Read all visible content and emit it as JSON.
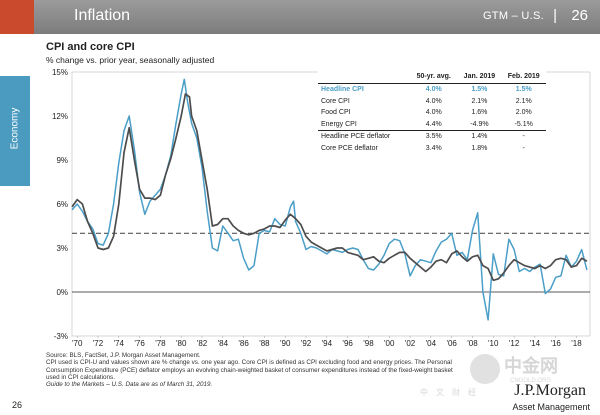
{
  "header": {
    "title": "Inflation",
    "gtm": "GTM – U.S.",
    "separator": "|",
    "page_number": "26"
  },
  "side_tab": {
    "label": "Economy"
  },
  "chart_title": "CPI and core CPI",
  "chart_subtitle": "% change vs. prior year, seasonally adjusted",
  "colors": {
    "headline": "#4a9ec7",
    "core": "#4d4d4d",
    "average_line": "#555555",
    "header_bg": "#8a8a8a",
    "accent": "#c94a2c",
    "side_tab": "#4b9bc0"
  },
  "chart_data": {
    "type": "line",
    "title": "CPI and core CPI",
    "subtitle": "% change vs. prior year, seasonally adjusted",
    "xlabel": "",
    "ylabel": "",
    "x_range": [
      1969.5,
      2019.3
    ],
    "ylim": [
      -3,
      15
    ],
    "yticks": [
      -3,
      0,
      3,
      6,
      9,
      12,
      15
    ],
    "ytick_labels": [
      "-3%",
      "0%",
      "3%",
      "6%",
      "9%",
      "12%",
      "15%"
    ],
    "xticks": [
      1970,
      1972,
      1974,
      1976,
      1978,
      1980,
      1982,
      1984,
      1986,
      1988,
      1990,
      1992,
      1994,
      1996,
      1998,
      2000,
      2002,
      2004,
      2006,
      2008,
      2010,
      2012,
      2014,
      2016,
      2018
    ],
    "xtick_labels": [
      "'70",
      "'72",
      "'74",
      "'76",
      "'78",
      "'80",
      "'82",
      "'84",
      "'86",
      "'88",
      "'90",
      "'92",
      "'94",
      "'96",
      "'98",
      "'00",
      "'02",
      "'04",
      "'06",
      "'08",
      "'10",
      "'12",
      "'14",
      "'16",
      "'18"
    ],
    "reference_line": {
      "name": "50-yr. avg.",
      "value": 4.0,
      "style": "dashed"
    },
    "series": [
      {
        "name": "Headline CPI",
        "x": [
          1969.5,
          1970,
          1970.5,
          1971,
          1971.5,
          1972,
          1972.5,
          1973,
          1973.5,
          1974,
          1974.5,
          1975,
          1975.5,
          1976,
          1976.5,
          1977,
          1977.5,
          1978,
          1978.5,
          1979,
          1979.5,
          1980,
          1980.3,
          1980.6,
          1981,
          1981.5,
          1982,
          1982.5,
          1983,
          1983.5,
          1984,
          1984.5,
          1985,
          1985.5,
          1986,
          1986.5,
          1987,
          1987.5,
          1988,
          1988.5,
          1989,
          1989.5,
          1990,
          1990.5,
          1990.8,
          1991,
          1991.5,
          1992,
          1992.5,
          1993,
          1993.5,
          1994,
          1994.5,
          1995,
          1995.5,
          1996,
          1996.5,
          1997,
          1997.5,
          1998,
          1998.5,
          1999,
          1999.5,
          2000,
          2000.5,
          2001,
          2001.5,
          2002,
          2002.5,
          2003,
          2003.5,
          2004,
          2004.5,
          2005,
          2005.5,
          2006,
          2006.5,
          2007,
          2007.5,
          2008,
          2008.5,
          2009,
          2009.5,
          2010,
          2010.5,
          2011,
          2011.5,
          2012,
          2012.5,
          2013,
          2013.5,
          2014,
          2014.5,
          2015,
          2015.5,
          2016,
          2016.5,
          2017,
          2017.5,
          2018,
          2018.5,
          2019
        ],
        "values": [
          5.6,
          6.0,
          5.5,
          4.8,
          4.3,
          3.3,
          3.2,
          4.0,
          6.0,
          8.8,
          11.0,
          12.0,
          9.7,
          6.8,
          5.3,
          6.2,
          6.6,
          7.0,
          8.0,
          9.3,
          11.5,
          13.5,
          14.5,
          13.0,
          11.5,
          10.5,
          8.5,
          5.5,
          3.0,
          2.8,
          4.5,
          4.0,
          3.5,
          3.6,
          2.3,
          1.5,
          1.8,
          4.0,
          4.2,
          4.1,
          5.0,
          4.6,
          4.5,
          5.8,
          6.2,
          4.8,
          4.0,
          2.9,
          3.1,
          3.0,
          2.8,
          2.6,
          2.9,
          2.8,
          2.7,
          2.9,
          3.0,
          2.9,
          2.2,
          1.6,
          1.5,
          1.9,
          2.5,
          3.3,
          3.6,
          3.5,
          2.6,
          1.1,
          1.8,
          2.2,
          2.1,
          2.0,
          2.8,
          3.4,
          3.6,
          4.0,
          2.5,
          2.7,
          2.2,
          4.2,
          5.4,
          0.0,
          -1.9,
          2.6,
          1.2,
          1.1,
          3.6,
          2.9,
          1.4,
          1.6,
          1.4,
          1.7,
          1.9,
          -0.1,
          0.2,
          1.0,
          1.1,
          2.5,
          1.7,
          2.1,
          2.9,
          1.5
        ]
      },
      {
        "name": "Core CPI",
        "x": [
          1969.5,
          1970,
          1970.5,
          1971,
          1971.5,
          1972,
          1972.5,
          1973,
          1973.5,
          1974,
          1974.5,
          1975,
          1975.5,
          1976,
          1976.5,
          1977,
          1977.5,
          1978,
          1978.5,
          1979,
          1979.5,
          1980,
          1980.4,
          1980.8,
          1981,
          1981.5,
          1982,
          1982.5,
          1983,
          1983.5,
          1984,
          1984.5,
          1985,
          1985.5,
          1986,
          1986.5,
          1987,
          1987.5,
          1988,
          1988.5,
          1989,
          1989.5,
          1990,
          1990.5,
          1991,
          1991.5,
          1992,
          1992.5,
          1993,
          1993.5,
          1994,
          1994.5,
          1995,
          1995.5,
          1996,
          1996.5,
          1997,
          1997.5,
          1998,
          1998.5,
          1999,
          1999.5,
          2000,
          2000.5,
          2001,
          2001.5,
          2002,
          2002.5,
          2003,
          2003.5,
          2004,
          2004.5,
          2005,
          2005.5,
          2006,
          2006.5,
          2007,
          2007.5,
          2008,
          2008.5,
          2009,
          2009.5,
          2010,
          2010.5,
          2011,
          2011.5,
          2012,
          2012.5,
          2013,
          2013.5,
          2014,
          2014.5,
          2015,
          2015.5,
          2016,
          2016.5,
          2017,
          2017.5,
          2018,
          2018.5,
          2019
        ],
        "values": [
          5.8,
          6.3,
          6.0,
          4.8,
          4.0,
          3.0,
          2.9,
          3.0,
          3.8,
          6.0,
          9.5,
          11.2,
          9.0,
          7.0,
          6.4,
          6.4,
          6.3,
          6.6,
          8.0,
          9.1,
          10.5,
          12.0,
          13.5,
          13.3,
          12.0,
          11.0,
          9.0,
          7.0,
          4.5,
          4.6,
          5.0,
          5.0,
          4.5,
          4.2,
          4.0,
          3.9,
          4.0,
          4.2,
          4.3,
          4.5,
          4.5,
          4.4,
          4.9,
          5.3,
          5.0,
          4.6,
          3.8,
          3.4,
          3.2,
          3.0,
          2.8,
          2.9,
          3.0,
          3.0,
          2.7,
          2.6,
          2.5,
          2.2,
          2.3,
          2.4,
          2.1,
          2.0,
          2.3,
          2.5,
          2.7,
          2.7,
          2.3,
          2.0,
          1.7,
          1.4,
          1.7,
          2.1,
          2.2,
          2.0,
          2.6,
          2.8,
          2.4,
          2.1,
          2.4,
          2.5,
          1.8,
          1.6,
          0.8,
          0.9,
          1.3,
          1.8,
          2.2,
          2.0,
          1.8,
          1.7,
          1.6,
          1.8,
          1.6,
          1.8,
          2.2,
          2.3,
          2.2,
          1.7,
          1.8,
          2.3,
          2.1
        ]
      }
    ]
  },
  "data_table": {
    "headers": [
      "",
      "50-yr. avg.",
      "Jan. 2019",
      "Feb. 2019"
    ],
    "rows": [
      [
        "Headline CPI",
        "4.0%",
        "1.5%",
        "1.5%"
      ],
      [
        "Core CPI",
        "4.0%",
        "2.1%",
        "2.1%"
      ],
      [
        "Food CPI",
        "4.0%",
        "1.6%",
        "2.0%"
      ],
      [
        "Energy CPI",
        "4.4%",
        "-4.9%",
        "-5.1%"
      ],
      [
        "Headline PCE deflator",
        "3.5%",
        "1.4%",
        "-"
      ],
      [
        "Core PCE deflator",
        "3.4%",
        "1.8%",
        "-"
      ]
    ]
  },
  "footnotes": {
    "source": "Source: BLS, FactSet, J.P. Morgan Asset Management.",
    "definition": "CPI used is CPI-U and values shown are % change vs. one year ago. Core CPI is defined as CPI excluding food and energy prices. The Personal Consumption Expenditure (PCE) deflator employs an evolving chain-weighted basket of consumer expenditures instead of the fixed-weight basket used in CPI calculations.",
    "guide": "Guide to the Markets – U.S. Data are as of March 31, 2019."
  },
  "footer": {
    "page_number": "26",
    "logo": "J.P.Morgan",
    "logo_sub": "Asset Management"
  },
  "watermark": {
    "cn": "中金网",
    "url": "CNGOLD.ORG",
    "cn2": "中文财经"
  }
}
